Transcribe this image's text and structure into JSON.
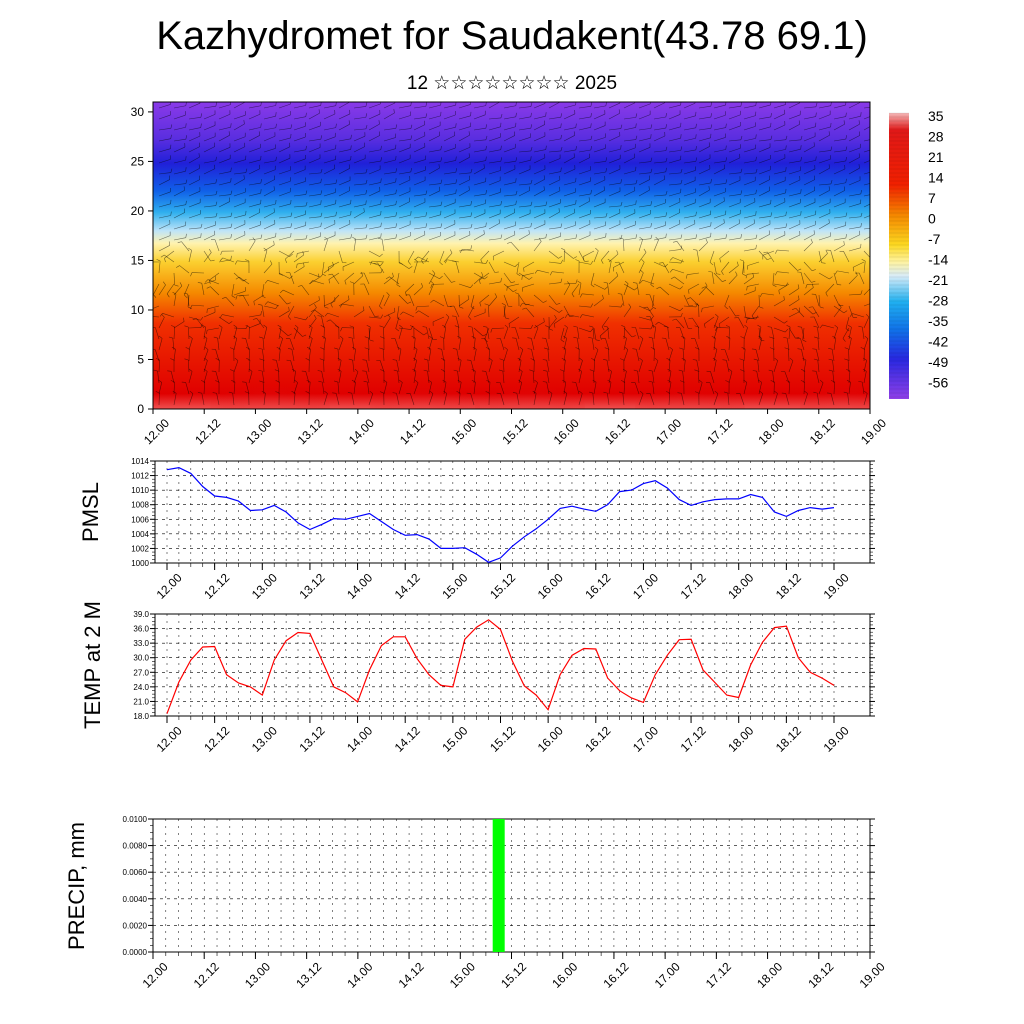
{
  "title": "Kazhydromet for Saudakent(43.78 69.1)",
  "subtitle": "12 ☆☆☆☆☆☆☆☆ 2025",
  "colors": {
    "pmsl_line": "#0000ff",
    "temp_line": "#ff0000",
    "precip_bar": "#00ff00",
    "frame": "#000000"
  },
  "chart_data": [
    {
      "type": "heatmap",
      "title": "",
      "x_ticks": [
        "12.00",
        "12.12",
        "13.00",
        "13.12",
        "14.00",
        "14.12",
        "15.00",
        "15.12",
        "16.00",
        "16.12",
        "17.00",
        "17.12",
        "18.00",
        "18.12",
        "19.00"
      ],
      "y_ticks": [
        0,
        5,
        10,
        15,
        20,
        25,
        30
      ],
      "ylim": [
        0,
        31
      ],
      "colorbar": {
        "labels": [
          "35",
          "28",
          "21",
          "14",
          "7",
          "0",
          "-7",
          "-14",
          "-21",
          "-28",
          "-35",
          "-42",
          "-49",
          "-56"
        ],
        "range": [
          -60,
          38
        ]
      },
      "vertical_temperature_profile": {
        "levels": [
          0,
          5,
          10,
          15,
          17.5,
          20,
          25,
          30
        ],
        "values": [
          35,
          25,
          13,
          -5,
          -14,
          -35,
          -56,
          -60
        ]
      },
      "wind_barbs": true
    },
    {
      "type": "line",
      "ylabel": "PMSL",
      "x_ticks": [
        "12.00",
        "12.12",
        "13.00",
        "13.12",
        "14.00",
        "14.12",
        "15.00",
        "15.12",
        "16.00",
        "16.12",
        "17.00",
        "17.12",
        "18.00",
        "18.12",
        "19.00"
      ],
      "y_ticks": [
        "1000",
        "1002",
        "1004",
        "1006",
        "1008",
        "1010",
        "1012",
        "1014"
      ],
      "ylim": [
        1000,
        1014
      ],
      "values": [
        1012.8,
        1013.1,
        1012.3,
        1010.5,
        1009.2,
        1009.0,
        1008.5,
        1007.2,
        1007.3,
        1007.9,
        1007.0,
        1005.5,
        1004.6,
        1005.3,
        1006.1,
        1006.0,
        1006.4,
        1006.8,
        1005.7,
        1004.6,
        1003.8,
        1003.9,
        1003.3,
        1002.0,
        1002.0,
        1002.1,
        1001.2,
        1000.1,
        1000.7,
        1002.3,
        1003.6,
        1004.7,
        1006.0,
        1007.5,
        1007.8,
        1007.4,
        1007.1,
        1008.0,
        1009.8,
        1010.0,
        1010.9,
        1011.3,
        1010.3,
        1008.7,
        1007.9,
        1008.4,
        1008.7,
        1008.8,
        1008.8,
        1009.4,
        1009.0,
        1007.0,
        1006.4,
        1007.2,
        1007.6,
        1007.4,
        1007.6
      ]
    },
    {
      "type": "line",
      "ylabel": "TEMP at 2 M",
      "x_ticks": [
        "12.00",
        "12.12",
        "13.00",
        "13.12",
        "14.00",
        "14.12",
        "15.00",
        "15.12",
        "16.00",
        "16.12",
        "17.00",
        "17.12",
        "18.00",
        "18.12",
        "19.00"
      ],
      "y_ticks": [
        "18.0",
        "21.0",
        "24.0",
        "27.0",
        "30.0",
        "33.0",
        "36.0",
        "39.0"
      ],
      "ylim": [
        18,
        39
      ],
      "values": [
        18.5,
        25.0,
        29.5,
        32.2,
        32.3,
        26.5,
        24.8,
        24.0,
        22.3,
        29.5,
        33.5,
        35.2,
        35.0,
        29.5,
        24.0,
        22.8,
        20.9,
        27.5,
        32.5,
        34.3,
        34.3,
        29.8,
        26.5,
        24.3,
        24.0,
        33.8,
        36.3,
        37.8,
        35.8,
        29.3,
        24.2,
        22.3,
        19.3,
        26.5,
        30.5,
        31.9,
        31.8,
        25.8,
        23.2,
        21.7,
        20.8,
        26.5,
        30.5,
        33.7,
        33.8,
        27.5,
        24.9,
        22.3,
        21.8,
        28.5,
        33.2,
        36.2,
        36.5,
        30.0,
        27.0,
        25.8,
        24.3
      ]
    },
    {
      "type": "bar",
      "ylabel": "PRECIP, mm",
      "x_ticks": [
        "12.00",
        "12.12",
        "13.00",
        "13.12",
        "14.00",
        "14.12",
        "15.00",
        "15.12",
        "16.00",
        "16.12",
        "17.00",
        "17.12",
        "18.00",
        "18.12",
        "19.00"
      ],
      "y_ticks": [
        "0.0000",
        "0.0020",
        "0.0040",
        "0.0060",
        "0.0080",
        "0.0100"
      ],
      "ylim": [
        0,
        0.01
      ],
      "bars": [
        {
          "x": "15.09",
          "value": 0.01
        }
      ]
    }
  ]
}
